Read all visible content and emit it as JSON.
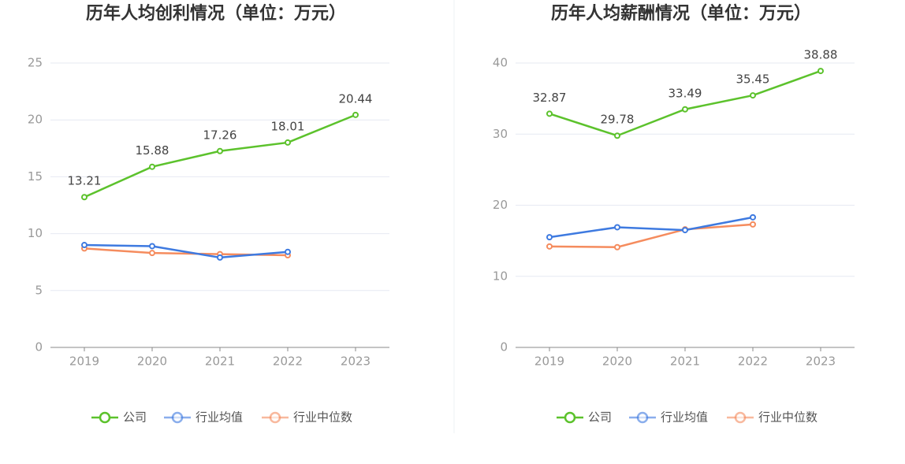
{
  "chart_data": [
    {
      "type": "line",
      "title": "历年人均创利情况（单位：万元）",
      "categories": [
        "2019",
        "2020",
        "2021",
        "2022",
        "2023"
      ],
      "ylim": [
        0,
        25
      ],
      "yticks": [
        0,
        5,
        10,
        15,
        20,
        25
      ],
      "grid": true,
      "series": [
        {
          "name": "公司",
          "color": "#5cc22c",
          "data_labels": true,
          "values": [
            13.21,
            15.88,
            17.26,
            18.01,
            20.44
          ]
        },
        {
          "name": "行业均值",
          "color": "#3e7ae0",
          "values": [
            9.0,
            8.9,
            7.9,
            8.4,
            null
          ]
        },
        {
          "name": "行业中位数",
          "color": "#f58c5e",
          "values": [
            8.7,
            8.3,
            8.2,
            8.1,
            null
          ]
        }
      ]
    },
    {
      "type": "line",
      "title": "历年人均薪酬情况（单位：万元）",
      "categories": [
        "2019",
        "2020",
        "2021",
        "2022",
        "2023"
      ],
      "ylim": [
        0,
        40
      ],
      "yticks": [
        0,
        10,
        20,
        30,
        40
      ],
      "grid": true,
      "series": [
        {
          "name": "公司",
          "color": "#5cc22c",
          "data_labels": true,
          "values": [
            32.87,
            29.78,
            33.49,
            35.45,
            38.88
          ]
        },
        {
          "name": "行业均值",
          "color": "#3e7ae0",
          "values": [
            15.5,
            16.9,
            16.5,
            18.3,
            null
          ]
        },
        {
          "name": "行业中位数",
          "color": "#f58c5e",
          "values": [
            14.2,
            14.1,
            16.6,
            17.3,
            null
          ]
        }
      ]
    }
  ]
}
